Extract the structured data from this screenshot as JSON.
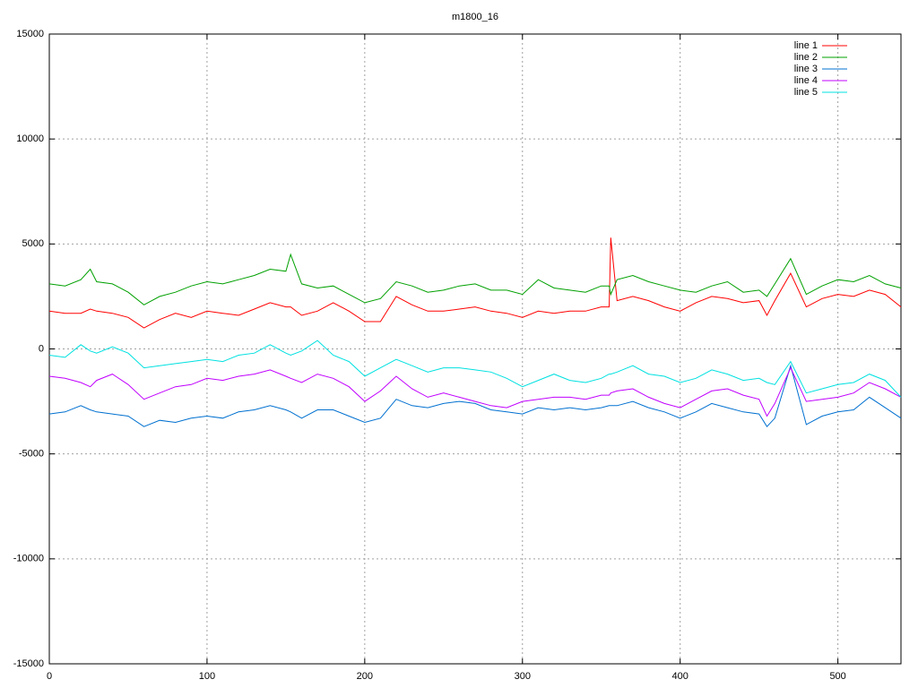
{
  "chart_data": {
    "type": "line",
    "title": "m1800_16",
    "x": [
      0,
      10,
      20,
      26,
      30,
      40,
      50,
      60,
      70,
      80,
      90,
      100,
      110,
      120,
      130,
      140,
      150,
      153,
      160,
      170,
      180,
      190,
      200,
      210,
      220,
      230,
      240,
      250,
      260,
      270,
      280,
      290,
      300,
      310,
      320,
      330,
      340,
      350,
      355,
      356,
      360,
      370,
      380,
      390,
      400,
      410,
      420,
      430,
      440,
      450,
      455,
      460,
      470,
      480,
      490,
      500,
      510,
      520,
      530,
      540
    ],
    "series": [
      {
        "name": "line 1",
        "color": "#ff0000",
        "values": [
          1800,
          1700,
          1700,
          1900,
          1800,
          1700,
          1500,
          1000,
          1400,
          1700,
          1500,
          1800,
          1700,
          1600,
          1900,
          2200,
          2000,
          2000,
          1600,
          1800,
          2200,
          1800,
          1300,
          1300,
          2500,
          2100,
          1800,
          1800,
          1900,
          2000,
          1800,
          1700,
          1500,
          1800,
          1700,
          1800,
          1800,
          2000,
          2000,
          5300,
          2300,
          2500,
          2300,
          2000,
          1800,
          2200,
          2500,
          2400,
          2200,
          2300,
          1600,
          2300,
          3600,
          2000,
          2400,
          2600,
          2500,
          2800,
          2600,
          2000
        ]
      },
      {
        "name": "line 2",
        "color": "#00a000",
        "values": [
          3100,
          3000,
          3300,
          3800,
          3200,
          3100,
          2700,
          2100,
          2500,
          2700,
          3000,
          3200,
          3100,
          3300,
          3500,
          3800,
          3700,
          4500,
          3100,
          2900,
          3000,
          2600,
          2200,
          2400,
          3200,
          3000,
          2700,
          2800,
          3000,
          3100,
          2800,
          2800,
          2600,
          3300,
          2900,
          2800,
          2700,
          3000,
          3000,
          2600,
          3300,
          3500,
          3200,
          3000,
          2800,
          2700,
          3000,
          3200,
          2700,
          2800,
          2500,
          3100,
          4300,
          2600,
          3000,
          3300,
          3200,
          3500,
          3100,
          2900
        ]
      },
      {
        "name": "line 3",
        "color": "#0070d0",
        "values": [
          -3100,
          -3000,
          -2700,
          -2900,
          -3000,
          -3100,
          -3200,
          -3700,
          -3400,
          -3500,
          -3300,
          -3200,
          -3300,
          -3000,
          -2900,
          -2700,
          -2900,
          -3000,
          -3300,
          -2900,
          -2900,
          -3200,
          -3500,
          -3300,
          -2400,
          -2700,
          -2800,
          -2600,
          -2500,
          -2600,
          -2900,
          -3000,
          -3100,
          -2800,
          -2900,
          -2800,
          -2900,
          -2800,
          -2700,
          -2700,
          -2700,
          -2500,
          -2800,
          -3000,
          -3300,
          -3000,
          -2600,
          -2800,
          -3000,
          -3100,
          -3700,
          -3300,
          -800,
          -3600,
          -3200,
          -3000,
          -2900,
          -2300,
          -2800,
          -3300
        ]
      },
      {
        "name": "line 4",
        "color": "#c000ff",
        "values": [
          -1300,
          -1400,
          -1600,
          -1800,
          -1500,
          -1200,
          -1700,
          -2400,
          -2100,
          -1800,
          -1700,
          -1400,
          -1500,
          -1300,
          -1200,
          -1000,
          -1300,
          -1400,
          -1600,
          -1200,
          -1400,
          -1800,
          -2500,
          -2000,
          -1300,
          -1900,
          -2300,
          -2100,
          -2300,
          -2500,
          -2700,
          -2800,
          -2500,
          -2400,
          -2300,
          -2300,
          -2400,
          -2200,
          -2200,
          -2100,
          -2000,
          -1900,
          -2300,
          -2600,
          -2800,
          -2400,
          -2000,
          -1900,
          -2200,
          -2400,
          -3200,
          -2600,
          -900,
          -2500,
          -2400,
          -2300,
          -2100,
          -1600,
          -1900,
          -2300
        ]
      },
      {
        "name": "line 5",
        "color": "#00e0e0",
        "values": [
          -300,
          -400,
          200,
          -100,
          -200,
          100,
          -200,
          -900,
          -800,
          -700,
          -600,
          -500,
          -600,
          -300,
          -200,
          200,
          -200,
          -300,
          -100,
          400,
          -300,
          -600,
          -1300,
          -900,
          -500,
          -800,
          -1100,
          -900,
          -900,
          -1000,
          -1100,
          -1400,
          -1800,
          -1500,
          -1200,
          -1500,
          -1600,
          -1400,
          -1200,
          -1200,
          -1100,
          -800,
          -1200,
          -1300,
          -1600,
          -1400,
          -1000,
          -1200,
          -1500,
          -1400,
          -1600,
          -1700,
          -600,
          -2100,
          -1900,
          -1700,
          -1600,
          -1200,
          -1500,
          -2300
        ]
      }
    ],
    "xlim": [
      0,
      540
    ],
    "xticks": [
      0,
      100,
      200,
      300,
      400,
      500
    ],
    "ylim": [
      -15000,
      15000
    ],
    "yticks": [
      -15000,
      -10000,
      -5000,
      0,
      5000,
      10000,
      15000
    ],
    "grid": true,
    "legend": "top-right"
  }
}
